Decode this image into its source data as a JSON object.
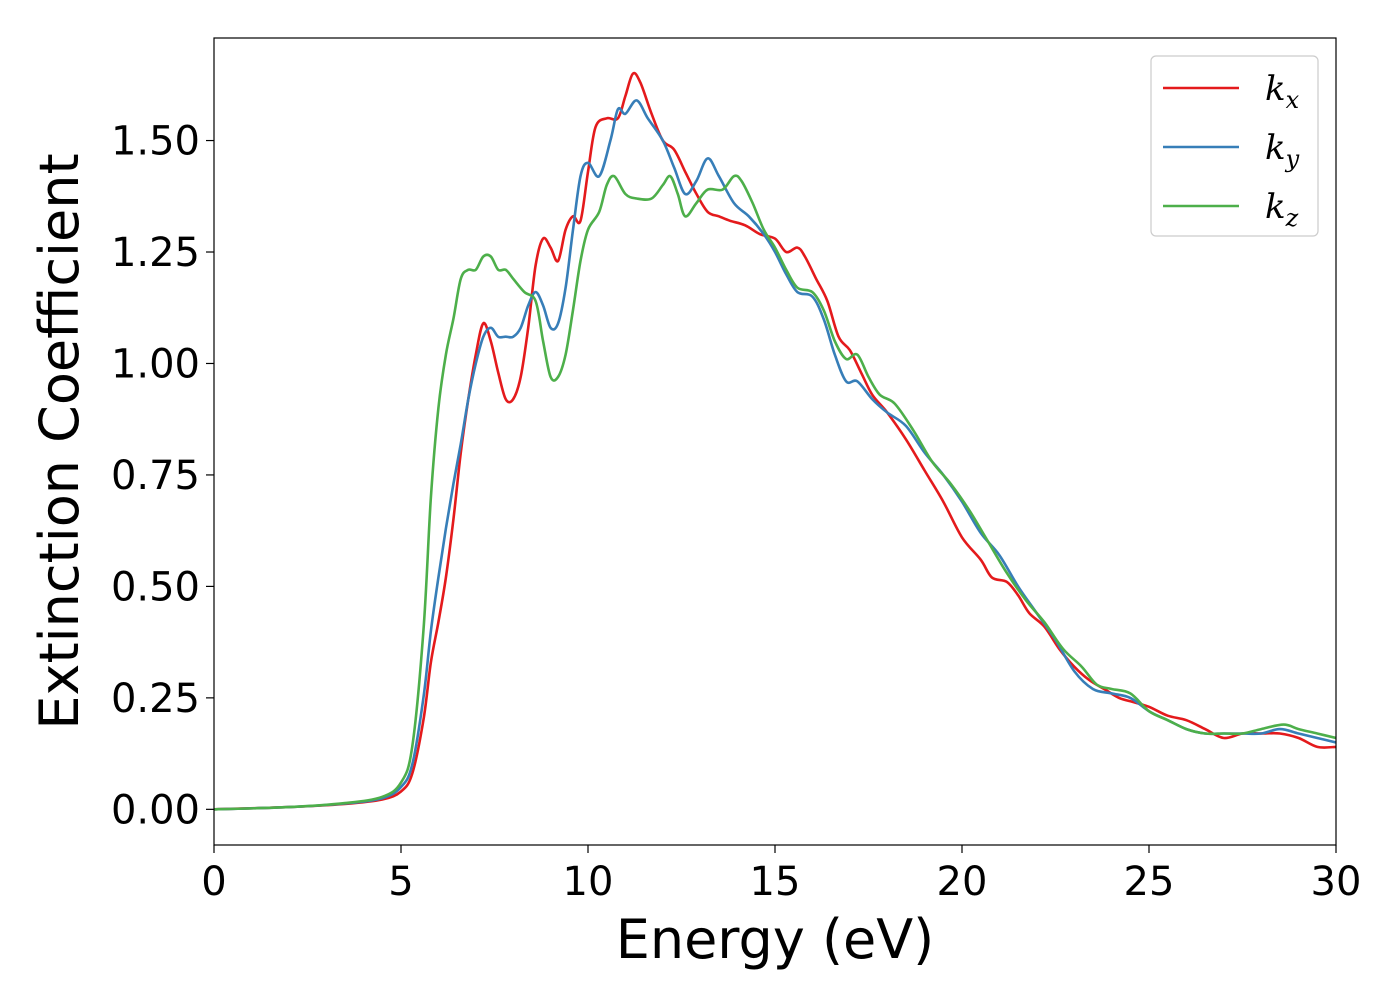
{
  "chart_data": {
    "type": "line",
    "title": "",
    "xlabel": "Energy (eV)",
    "ylabel": "Extinction Coefficient",
    "xlim": [
      0,
      30
    ],
    "ylim": [
      -0.08,
      1.73
    ],
    "xticks": [
      "0",
      "5",
      "10",
      "15",
      "20",
      "25",
      "30"
    ],
    "yticks": [
      "0.00",
      "0.25",
      "0.50",
      "0.75",
      "1.00",
      "1.25",
      "1.50"
    ],
    "grid": false,
    "legend_position": "top-right",
    "series": [
      {
        "name": "k",
        "subscript": "x",
        "color": "#e41a1c",
        "points": [
          [
            0,
            0
          ],
          [
            2,
            0.005
          ],
          [
            3.5,
            0.012
          ],
          [
            4.5,
            0.022
          ],
          [
            5,
            0.04
          ],
          [
            5.3,
            0.08
          ],
          [
            5.6,
            0.2
          ],
          [
            5.8,
            0.33
          ],
          [
            6,
            0.42
          ],
          [
            6.2,
            0.52
          ],
          [
            6.4,
            0.65
          ],
          [
            6.6,
            0.8
          ],
          [
            6.8,
            0.92
          ],
          [
            7,
            1.02
          ],
          [
            7.2,
            1.09
          ],
          [
            7.4,
            1.05
          ],
          [
            7.6,
            0.98
          ],
          [
            7.8,
            0.92
          ],
          [
            8,
            0.92
          ],
          [
            8.2,
            0.97
          ],
          [
            8.4,
            1.08
          ],
          [
            8.6,
            1.22
          ],
          [
            8.8,
            1.28
          ],
          [
            9,
            1.26
          ],
          [
            9.2,
            1.23
          ],
          [
            9.4,
            1.3
          ],
          [
            9.6,
            1.33
          ],
          [
            9.8,
            1.32
          ],
          [
            10,
            1.43
          ],
          [
            10.2,
            1.53
          ],
          [
            10.5,
            1.55
          ],
          [
            10.8,
            1.55
          ],
          [
            11,
            1.6
          ],
          [
            11.2,
            1.65
          ],
          [
            11.4,
            1.63
          ],
          [
            11.7,
            1.56
          ],
          [
            12,
            1.5
          ],
          [
            12.3,
            1.48
          ],
          [
            12.6,
            1.43
          ],
          [
            12.9,
            1.38
          ],
          [
            13.2,
            1.34
          ],
          [
            13.5,
            1.33
          ],
          [
            13.8,
            1.32
          ],
          [
            14.2,
            1.31
          ],
          [
            14.6,
            1.29
          ],
          [
            15,
            1.28
          ],
          [
            15.3,
            1.25
          ],
          [
            15.6,
            1.26
          ],
          [
            15.8,
            1.24
          ],
          [
            16.1,
            1.19
          ],
          [
            16.4,
            1.14
          ],
          [
            16.7,
            1.06
          ],
          [
            17,
            1.03
          ],
          [
            17.3,
            0.98
          ],
          [
            17.6,
            0.93
          ],
          [
            18,
            0.89
          ],
          [
            18.5,
            0.83
          ],
          [
            19,
            0.76
          ],
          [
            19.5,
            0.69
          ],
          [
            20,
            0.61
          ],
          [
            20.5,
            0.56
          ],
          [
            20.8,
            0.52
          ],
          [
            21.2,
            0.51
          ],
          [
            21.5,
            0.48
          ],
          [
            21.8,
            0.44
          ],
          [
            22.2,
            0.41
          ],
          [
            22.6,
            0.36
          ],
          [
            23,
            0.32
          ],
          [
            23.4,
            0.29
          ],
          [
            23.8,
            0.27
          ],
          [
            24.2,
            0.25
          ],
          [
            24.6,
            0.24
          ],
          [
            25,
            0.23
          ],
          [
            25.5,
            0.21
          ],
          [
            26,
            0.2
          ],
          [
            26.5,
            0.18
          ],
          [
            27,
            0.16
          ],
          [
            27.5,
            0.17
          ],
          [
            28,
            0.17
          ],
          [
            28.5,
            0.17
          ],
          [
            29,
            0.16
          ],
          [
            29.5,
            0.14
          ],
          [
            30,
            0.14
          ]
        ]
      },
      {
        "name": "k",
        "subscript": "y",
        "color": "#377eb8",
        "points": [
          [
            0,
            0
          ],
          [
            2,
            0.005
          ],
          [
            3.5,
            0.013
          ],
          [
            4.5,
            0.025
          ],
          [
            5,
            0.05
          ],
          [
            5.3,
            0.1
          ],
          [
            5.6,
            0.25
          ],
          [
            5.8,
            0.4
          ],
          [
            6,
            0.52
          ],
          [
            6.2,
            0.63
          ],
          [
            6.4,
            0.73
          ],
          [
            6.6,
            0.82
          ],
          [
            6.8,
            0.92
          ],
          [
            7,
            1
          ],
          [
            7.2,
            1.06
          ],
          [
            7.4,
            1.08
          ],
          [
            7.6,
            1.06
          ],
          [
            7.8,
            1.06
          ],
          [
            8,
            1.06
          ],
          [
            8.2,
            1.08
          ],
          [
            8.4,
            1.13
          ],
          [
            8.6,
            1.16
          ],
          [
            8.8,
            1.13
          ],
          [
            9,
            1.08
          ],
          [
            9.2,
            1.09
          ],
          [
            9.4,
            1.17
          ],
          [
            9.6,
            1.3
          ],
          [
            9.8,
            1.42
          ],
          [
            10,
            1.45
          ],
          [
            10.3,
            1.42
          ],
          [
            10.6,
            1.5
          ],
          [
            10.8,
            1.57
          ],
          [
            11,
            1.56
          ],
          [
            11.3,
            1.59
          ],
          [
            11.6,
            1.55
          ],
          [
            12,
            1.5
          ],
          [
            12.3,
            1.44
          ],
          [
            12.6,
            1.38
          ],
          [
            12.9,
            1.41
          ],
          [
            13.2,
            1.46
          ],
          [
            13.5,
            1.42
          ],
          [
            13.9,
            1.36
          ],
          [
            14.3,
            1.33
          ],
          [
            14.7,
            1.29
          ],
          [
            15,
            1.25
          ],
          [
            15.3,
            1.2
          ],
          [
            15.6,
            1.16
          ],
          [
            16,
            1.15
          ],
          [
            16.3,
            1.1
          ],
          [
            16.6,
            1.02
          ],
          [
            16.9,
            0.96
          ],
          [
            17.2,
            0.96
          ],
          [
            17.6,
            0.92
          ],
          [
            18,
            0.89
          ],
          [
            18.5,
            0.86
          ],
          [
            19,
            0.8
          ],
          [
            19.5,
            0.75
          ],
          [
            20,
            0.69
          ],
          [
            20.5,
            0.62
          ],
          [
            21,
            0.57
          ],
          [
            21.5,
            0.5
          ],
          [
            22,
            0.44
          ],
          [
            22.5,
            0.38
          ],
          [
            23,
            0.31
          ],
          [
            23.5,
            0.27
          ],
          [
            24,
            0.26
          ],
          [
            24.5,
            0.25
          ],
          [
            25,
            0.22
          ],
          [
            25.5,
            0.2
          ],
          [
            26,
            0.18
          ],
          [
            26.5,
            0.17
          ],
          [
            27,
            0.17
          ],
          [
            27.5,
            0.17
          ],
          [
            28,
            0.17
          ],
          [
            28.5,
            0.18
          ],
          [
            29,
            0.17
          ],
          [
            29.5,
            0.16
          ],
          [
            30,
            0.15
          ]
        ]
      },
      {
        "name": "k",
        "subscript": "z",
        "color": "#4daf4a",
        "points": [
          [
            0,
            0
          ],
          [
            2,
            0.005
          ],
          [
            3.5,
            0.014
          ],
          [
            4.5,
            0.028
          ],
          [
            5,
            0.06
          ],
          [
            5.3,
            0.14
          ],
          [
            5.6,
            0.4
          ],
          [
            5.8,
            0.7
          ],
          [
            6,
            0.9
          ],
          [
            6.2,
            1.02
          ],
          [
            6.4,
            1.1
          ],
          [
            6.6,
            1.19
          ],
          [
            6.8,
            1.21
          ],
          [
            7,
            1.21
          ],
          [
            7.2,
            1.24
          ],
          [
            7.4,
            1.24
          ],
          [
            7.6,
            1.21
          ],
          [
            7.8,
            1.21
          ],
          [
            8,
            1.19
          ],
          [
            8.3,
            1.16
          ],
          [
            8.6,
            1.14
          ],
          [
            8.8,
            1.05
          ],
          [
            9,
            0.97
          ],
          [
            9.2,
            0.97
          ],
          [
            9.4,
            1.02
          ],
          [
            9.6,
            1.12
          ],
          [
            9.8,
            1.23
          ],
          [
            10,
            1.3
          ],
          [
            10.3,
            1.34
          ],
          [
            10.5,
            1.4
          ],
          [
            10.7,
            1.42
          ],
          [
            11,
            1.38
          ],
          [
            11.3,
            1.37
          ],
          [
            11.7,
            1.37
          ],
          [
            12,
            1.4
          ],
          [
            12.2,
            1.42
          ],
          [
            12.4,
            1.38
          ],
          [
            12.6,
            1.33
          ],
          [
            12.9,
            1.36
          ],
          [
            13.2,
            1.39
          ],
          [
            13.6,
            1.39
          ],
          [
            13.9,
            1.42
          ],
          [
            14.1,
            1.41
          ],
          [
            14.4,
            1.36
          ],
          [
            14.7,
            1.3
          ],
          [
            15,
            1.26
          ],
          [
            15.3,
            1.21
          ],
          [
            15.6,
            1.17
          ],
          [
            16,
            1.16
          ],
          [
            16.3,
            1.12
          ],
          [
            16.6,
            1.05
          ],
          [
            16.9,
            1.01
          ],
          [
            17.2,
            1.02
          ],
          [
            17.5,
            0.97
          ],
          [
            17.8,
            0.93
          ],
          [
            18.2,
            0.91
          ],
          [
            18.7,
            0.85
          ],
          [
            19.2,
            0.78
          ],
          [
            19.7,
            0.73
          ],
          [
            20.2,
            0.67
          ],
          [
            20.7,
            0.6
          ],
          [
            21.2,
            0.53
          ],
          [
            21.7,
            0.47
          ],
          [
            22.2,
            0.42
          ],
          [
            22.7,
            0.36
          ],
          [
            23.2,
            0.32
          ],
          [
            23.6,
            0.28
          ],
          [
            24,
            0.27
          ],
          [
            24.5,
            0.26
          ],
          [
            25,
            0.22
          ],
          [
            25.5,
            0.2
          ],
          [
            26,
            0.18
          ],
          [
            26.5,
            0.17
          ],
          [
            27,
            0.17
          ],
          [
            27.5,
            0.17
          ],
          [
            28,
            0.18
          ],
          [
            28.6,
            0.19
          ],
          [
            29,
            0.18
          ],
          [
            29.5,
            0.17
          ],
          [
            30,
            0.16
          ]
        ]
      }
    ]
  }
}
